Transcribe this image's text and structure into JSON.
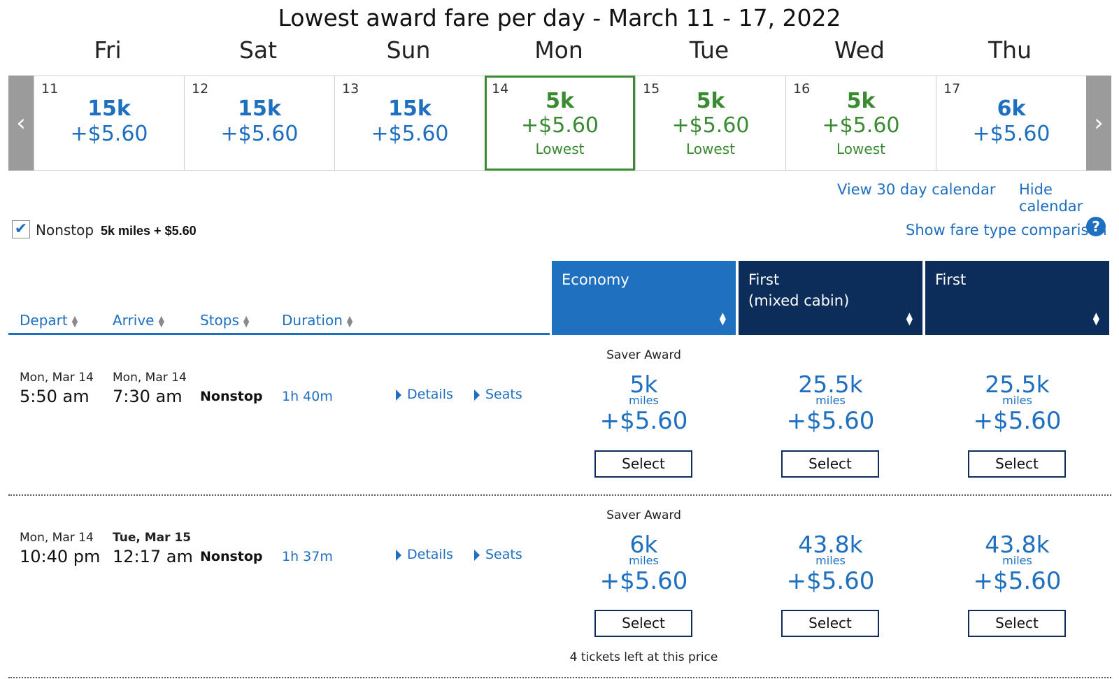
{
  "calendar": {
    "title": "Lowest award fare per day - March 11 - 17, 2022",
    "prev_arrow": "‹",
    "next_arrow": "›",
    "days": [
      {
        "dow": "Fri",
        "num": "11",
        "miles": "15k",
        "price": "+$5.60",
        "lowest": ""
      },
      {
        "dow": "Sat",
        "num": "12",
        "miles": "15k",
        "price": "+$5.60",
        "lowest": ""
      },
      {
        "dow": "Sun",
        "num": "13",
        "miles": "15k",
        "price": "+$5.60",
        "lowest": ""
      },
      {
        "dow": "Mon",
        "num": "14",
        "miles": "5k",
        "price": "+$5.60",
        "lowest": "Lowest"
      },
      {
        "dow": "Tue",
        "num": "15",
        "miles": "5k",
        "price": "+$5.60",
        "lowest": "Lowest"
      },
      {
        "dow": "Wed",
        "num": "16",
        "miles": "5k",
        "price": "+$5.60",
        "lowest": "Lowest"
      },
      {
        "dow": "Thu",
        "num": "17",
        "miles": "6k",
        "price": "+$5.60",
        "lowest": ""
      }
    ],
    "view_30_day": "View 30 day calendar",
    "hide_calendar": "Hide calendar"
  },
  "filter": {
    "nonstop_label": "Nonstop",
    "nonstop_checked": true,
    "nonstop_price": "5k miles + $5.60",
    "fare_comparison": "Show fare type comparison",
    "help": "?"
  },
  "table": {
    "columns": [
      "Depart",
      "Arrive",
      "Stops",
      "Duration"
    ],
    "fare_columns": [
      {
        "line1": "Economy",
        "line2": "",
        "color": "#2070c0"
      },
      {
        "line1": "First",
        "line2": "(mixed cabin)",
        "color": "#0c2d5a"
      },
      {
        "line1": "First",
        "line2": "",
        "color": "#0c2d5a"
      }
    ]
  },
  "flights": [
    {
      "depart_date": "Mon, Mar 14",
      "depart_time": "5:50 am",
      "arrive_date": "Mon, Mar 14",
      "arrive_time": "7:30 am",
      "stops": "Nonstop",
      "duration": "1h 40m",
      "details": "Details",
      "seats": "Seats",
      "award_label": "Saver Award",
      "fares": [
        {
          "miles": "5k",
          "unit": "miles",
          "price": "+$5.60",
          "button": "Select"
        },
        {
          "miles": "25.5k",
          "unit": "miles",
          "price": "+$5.60",
          "button": "Select"
        },
        {
          "miles": "25.5k",
          "unit": "miles",
          "price": "+$5.60",
          "button": "Select"
        }
      ],
      "note": ""
    },
    {
      "depart_date": "Mon, Mar 14",
      "depart_time": "10:40 pm",
      "arrive_date": "Tue, Mar 15",
      "arrive_time": "12:17 am",
      "stops": "Nonstop",
      "duration": "1h 37m",
      "details": "Details",
      "seats": "Seats",
      "award_label": "Saver Award",
      "fares": [
        {
          "miles": "6k",
          "unit": "miles",
          "price": "+$5.60",
          "button": "Select"
        },
        {
          "miles": "43.8k",
          "unit": "miles",
          "price": "+$5.60",
          "button": "Select"
        },
        {
          "miles": "43.8k",
          "unit": "miles",
          "price": "+$5.60",
          "button": "Select"
        }
      ],
      "note": "4 tickets left at this price"
    }
  ]
}
